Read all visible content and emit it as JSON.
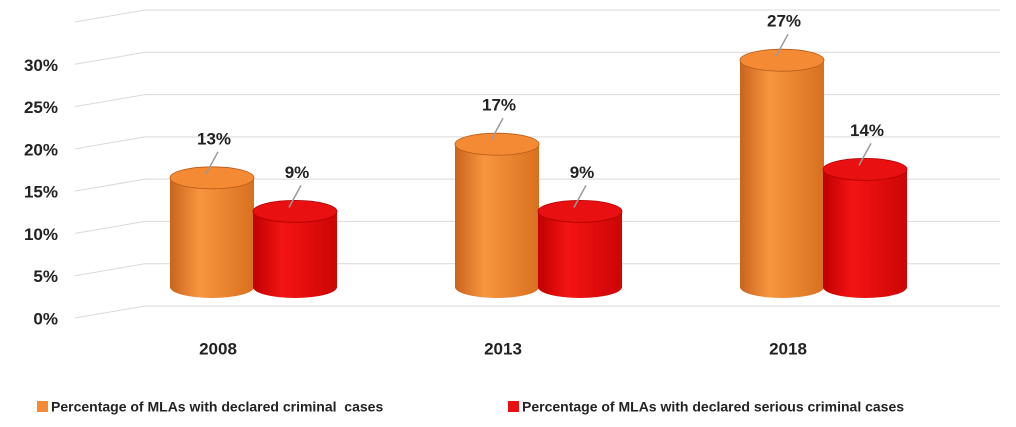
{
  "chart_data": {
    "type": "bar",
    "categories": [
      "2008",
      "2013",
      "2018"
    ],
    "series": [
      {
        "name": "Percentage of MLAs with declared criminal  cases",
        "color": "#f58a35",
        "values": [
          13,
          17,
          27
        ],
        "value_labels": [
          "13%",
          "17%",
          "27%"
        ]
      },
      {
        "name": "Percentage of MLAs with declared serious criminal cases",
        "color": "#e81010",
        "values": [
          9,
          9,
          14
        ],
        "value_labels": [
          "9%",
          "9%",
          "14%"
        ]
      }
    ],
    "ylim": [
      0,
      35
    ],
    "yticks": [
      {
        "value": 0,
        "label": "0%"
      },
      {
        "value": 5,
        "label": "5%"
      },
      {
        "value": 10,
        "label": "10%"
      },
      {
        "value": 15,
        "label": "15%"
      },
      {
        "value": 20,
        "label": "20%"
      },
      {
        "value": 25,
        "label": "25%"
      },
      {
        "value": 30,
        "label": "30%"
      }
    ],
    "grid": true,
    "legend": "bottom"
  }
}
